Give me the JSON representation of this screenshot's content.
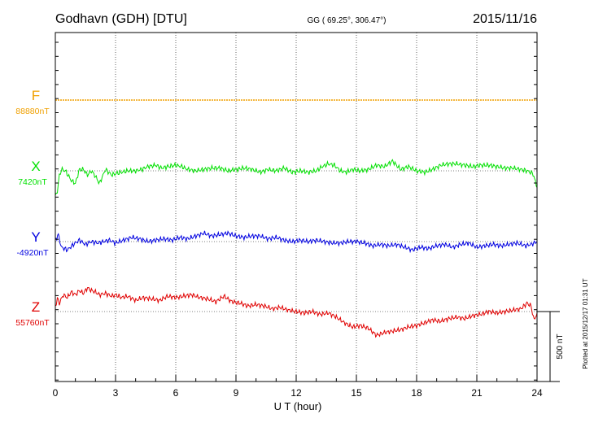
{
  "header": {
    "station": "Godhavn (GDH)  [DTU]",
    "coords": "GG ( 69.25°, 306.47°)",
    "date": "2015/11/16"
  },
  "side_note": "Plotted at 2015/12/17 01:31  UT",
  "chart_data": {
    "type": "line",
    "xlabel": "U T (hour)",
    "xlim": [
      0,
      24
    ],
    "x_ticks": [
      "0",
      "3",
      "6",
      "9",
      "12",
      "15",
      "18",
      "21",
      "24"
    ],
    "scale_bar": "500 nT",
    "scale_bar_nT": 500,
    "grid": "dotted",
    "series": [
      {
        "name": "F",
        "baseline_label": "88880nT",
        "color": "#f0a000",
        "x": [
          0,
          24
        ],
        "offset_nT": [
          0,
          0
        ]
      },
      {
        "name": "X",
        "baseline_label": "7420nT",
        "color": "#00e000",
        "x": [
          0,
          0.1,
          0.2,
          0.3,
          0.5,
          0.8,
          1.0,
          1.2,
          1.4,
          1.6,
          1.8,
          2.0,
          2.2,
          2.5,
          2.8,
          3.0,
          3.3,
          3.6,
          4.0,
          4.3,
          4.6,
          5.0,
          5.3,
          5.6,
          6.0,
          6.3,
          6.6,
          7.0,
          7.4,
          7.8,
          8.2,
          8.6,
          9.0,
          9.4,
          9.8,
          10.2,
          10.6,
          11.0,
          11.4,
          11.8,
          12.2,
          12.6,
          13.0,
          13.3,
          13.6,
          13.9,
          14.2,
          14.5,
          14.8,
          15.2,
          15.6,
          16.0,
          16.4,
          16.8,
          17.2,
          17.6,
          18.0,
          18.4,
          18.8,
          19.2,
          19.6,
          20.0,
          20.4,
          20.8,
          21.2,
          21.6,
          22.0,
          22.4,
          22.8,
          23.2,
          23.5,
          23.8,
          24.0
        ],
        "offset_nT": [
          -190,
          -140,
          -40,
          10,
          0,
          -70,
          -90,
          10,
          10,
          -30,
          0,
          -40,
          -90,
          10,
          -30,
          -20,
          -10,
          0,
          0,
          10,
          30,
          40,
          20,
          30,
          40,
          30,
          10,
          0,
          10,
          20,
          20,
          0,
          10,
          20,
          10,
          -10,
          10,
          0,
          20,
          -10,
          0,
          -10,
          0,
          30,
          50,
          40,
          0,
          -10,
          10,
          0,
          10,
          40,
          30,
          70,
          10,
          30,
          0,
          -10,
          10,
          40,
          50,
          50,
          40,
          30,
          40,
          40,
          30,
          20,
          20,
          10,
          0,
          -20,
          -120
        ]
      },
      {
        "name": "Y",
        "baseline_label": "-4920nT",
        "color": "#0000e0",
        "x": [
          0,
          0.15,
          0.3,
          0.6,
          0.9,
          1.2,
          1.5,
          1.8,
          2.1,
          2.4,
          2.7,
          3.0,
          3.4,
          3.8,
          4.2,
          4.6,
          5.0,
          5.4,
          5.8,
          6.2,
          6.6,
          7.0,
          7.4,
          7.8,
          8.2,
          8.6,
          9.0,
          9.4,
          9.8,
          10.2,
          10.6,
          11.0,
          11.4,
          11.8,
          12.2,
          12.6,
          13.0,
          13.4,
          13.8,
          14.2,
          14.6,
          15.0,
          15.4,
          15.8,
          16.2,
          16.6,
          17.0,
          17.4,
          17.8,
          18.2,
          18.6,
          19.0,
          19.4,
          19.8,
          20.2,
          20.6,
          21.0,
          21.4,
          21.8,
          22.2,
          22.6,
          23.0,
          23.4,
          23.7,
          24.0
        ],
        "offset_nT": [
          10,
          50,
          -40,
          -60,
          -20,
          10,
          -20,
          0,
          -10,
          0,
          10,
          -10,
          10,
          30,
          20,
          0,
          10,
          20,
          10,
          30,
          20,
          40,
          60,
          40,
          50,
          60,
          40,
          30,
          40,
          40,
          20,
          30,
          10,
          0,
          10,
          0,
          10,
          0,
          -10,
          -10,
          0,
          0,
          -10,
          -30,
          -20,
          -30,
          -20,
          -40,
          -60,
          -40,
          -50,
          -30,
          -20,
          -40,
          -20,
          -10,
          -40,
          -30,
          -20,
          -30,
          -20,
          -10,
          -30,
          -20,
          0
        ]
      },
      {
        "name": "Z",
        "baseline_label": "55760nT",
        "color": "#e00000",
        "x": [
          0,
          0.1,
          0.2,
          0.4,
          0.6,
          0.8,
          1.0,
          1.2,
          1.4,
          1.6,
          1.8,
          2.0,
          2.2,
          2.5,
          2.8,
          3.0,
          3.3,
          3.6,
          4.0,
          4.4,
          4.8,
          5.2,
          5.6,
          6.0,
          6.4,
          6.8,
          7.2,
          7.6,
          8.0,
          8.4,
          8.8,
          9.2,
          9.6,
          10.0,
          10.4,
          10.8,
          11.2,
          11.6,
          12.0,
          12.4,
          12.8,
          13.2,
          13.6,
          14.0,
          14.4,
          14.8,
          15.2,
          15.6,
          16.0,
          16.4,
          16.8,
          17.2,
          17.6,
          18.0,
          18.4,
          18.8,
          19.2,
          19.6,
          20.0,
          20.4,
          20.8,
          21.2,
          21.6,
          22.0,
          22.4,
          22.8,
          23.2,
          23.5,
          23.7,
          23.85,
          24.0
        ],
        "offset_nT": [
          40,
          90,
          60,
          120,
          100,
          140,
          120,
          150,
          130,
          170,
          150,
          140,
          120,
          130,
          110,
          120,
          100,
          110,
          80,
          100,
          90,
          80,
          110,
          100,
          110,
          120,
          100,
          90,
          70,
          110,
          70,
          60,
          40,
          50,
          40,
          20,
          30,
          10,
          0,
          -10,
          0,
          -20,
          -10,
          -40,
          -80,
          -110,
          -100,
          -120,
          -170,
          -150,
          -140,
          -130,
          -110,
          -100,
          -80,
          -60,
          -70,
          -50,
          -40,
          -50,
          -30,
          -20,
          0,
          -10,
          0,
          10,
          20,
          60,
          40,
          -60,
          -10
        ]
      }
    ]
  }
}
